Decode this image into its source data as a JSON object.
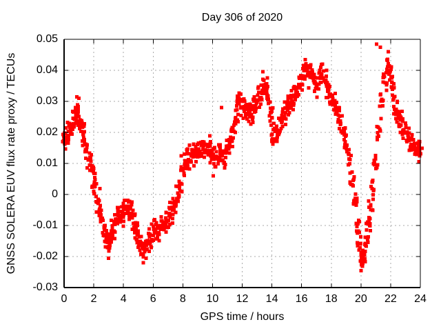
{
  "chart_data": {
    "type": "scatter",
    "title": "Day 306 of 2020",
    "xlabel": "GPS time / hours",
    "ylabel": "GNSS SOLERA EUV flux rate proxy / TECUs",
    "xlim": [
      0,
      24
    ],
    "ylim": [
      -0.03,
      0.05
    ],
    "xticks": [
      0,
      2,
      4,
      6,
      8,
      10,
      12,
      14,
      16,
      18,
      20,
      22,
      24
    ],
    "xtick_labels": [
      "0",
      "2",
      "4",
      "6",
      "8",
      "10",
      "12",
      "14",
      "16",
      "18",
      "20",
      "22",
      "24"
    ],
    "yticks": [
      -0.03,
      -0.02,
      -0.01,
      0,
      0.01,
      0.02,
      0.03,
      0.04,
      0.05
    ],
    "ytick_labels": [
      "-0.03",
      "-0.02",
      "-0.01",
      "0",
      "0.01",
      "0.02",
      "0.03",
      "0.04",
      "0.05"
    ],
    "grid": true,
    "grid_style": "dashed",
    "legend_position": "none",
    "marker": "filled-square",
    "marker_color": "#ff0000",
    "marker_size_px": 5,
    "scatter_band_halfwidth": 0.005,
    "points_per_sample": 10,
    "series": [
      {
        "name": "EUV flux rate proxy",
        "midline": [
          [
            0,
            0.018
          ],
          [
            0.15,
            0.019
          ],
          [
            0.3,
            0.02
          ],
          [
            0.5,
            0.022
          ],
          [
            0.7,
            0.025
          ],
          [
            0.85,
            0.026
          ],
          [
            1,
            0.024
          ],
          [
            1.15,
            0.022
          ],
          [
            1.3,
            0.019
          ],
          [
            1.5,
            0.015
          ],
          [
            1.7,
            0.011
          ],
          [
            1.85,
            0.009
          ],
          [
            2,
            0.006
          ],
          [
            2.15,
            0.002
          ],
          [
            2.3,
            -0.002
          ],
          [
            2.5,
            -0.008
          ],
          [
            2.7,
            -0.012
          ],
          [
            2.85,
            -0.014
          ],
          [
            3,
            -0.015
          ],
          [
            3.15,
            -0.015
          ],
          [
            3.3,
            -0.012
          ],
          [
            3.5,
            -0.009
          ],
          [
            3.7,
            -0.007
          ],
          [
            3.9,
            -0.006
          ],
          [
            4.1,
            -0.005
          ],
          [
            4.3,
            -0.004
          ],
          [
            4.5,
            -0.005
          ],
          [
            4.7,
            -0.008
          ],
          [
            4.85,
            -0.011
          ],
          [
            5,
            -0.014
          ],
          [
            5.15,
            -0.016
          ],
          [
            5.3,
            -0.018
          ],
          [
            5.45,
            -0.018
          ],
          [
            5.6,
            -0.016
          ],
          [
            5.8,
            -0.014
          ],
          [
            6,
            -0.013
          ],
          [
            6.2,
            -0.012
          ],
          [
            6.4,
            -0.011
          ],
          [
            6.6,
            -0.01
          ],
          [
            6.8,
            -0.009
          ],
          [
            7,
            -0.008
          ],
          [
            7.2,
            -0.006
          ],
          [
            7.4,
            -0.004
          ],
          [
            7.6,
            -0.001
          ],
          [
            7.8,
            0.003
          ],
          [
            8,
            0.008
          ],
          [
            8.2,
            0.01
          ],
          [
            8.4,
            0.012
          ],
          [
            8.6,
            0.013
          ],
          [
            8.8,
            0.013
          ],
          [
            9,
            0.014
          ],
          [
            9.2,
            0.015
          ],
          [
            9.4,
            0.015
          ],
          [
            9.6,
            0.015
          ],
          [
            9.8,
            0.014
          ],
          [
            10,
            0.013
          ],
          [
            10.2,
            0.012
          ],
          [
            10.4,
            0.013
          ],
          [
            10.6,
            0.013
          ],
          [
            10.8,
            0.013
          ],
          [
            11,
            0.015
          ],
          [
            11.2,
            0.017
          ],
          [
            11.4,
            0.021
          ],
          [
            11.6,
            0.026
          ],
          [
            11.8,
            0.029
          ],
          [
            12,
            0.029
          ],
          [
            12.2,
            0.027
          ],
          [
            12.4,
            0.026
          ],
          [
            12.6,
            0.026
          ],
          [
            12.8,
            0.028
          ],
          [
            13,
            0.03
          ],
          [
            13.2,
            0.032
          ],
          [
            13.4,
            0.034
          ],
          [
            13.6,
            0.034
          ],
          [
            13.8,
            0.032
          ],
          [
            13.95,
            0.026
          ],
          [
            14.1,
            0.019
          ],
          [
            14.25,
            0.02
          ],
          [
            14.4,
            0.021
          ],
          [
            14.6,
            0.022
          ],
          [
            14.8,
            0.025
          ],
          [
            15,
            0.028
          ],
          [
            15.2,
            0.029
          ],
          [
            15.4,
            0.03
          ],
          [
            15.6,
            0.032
          ],
          [
            15.8,
            0.034
          ],
          [
            16,
            0.037
          ],
          [
            16.2,
            0.039
          ],
          [
            16.4,
            0.04
          ],
          [
            16.6,
            0.038
          ],
          [
            16.8,
            0.036
          ],
          [
            17,
            0.035
          ],
          [
            17.2,
            0.037
          ],
          [
            17.4,
            0.038
          ],
          [
            17.6,
            0.036
          ],
          [
            17.8,
            0.033
          ],
          [
            18,
            0.031
          ],
          [
            18.2,
            0.029
          ],
          [
            18.4,
            0.027
          ],
          [
            18.6,
            0.024
          ],
          [
            18.8,
            0.021
          ],
          [
            19,
            0.017
          ],
          [
            19.2,
            0.012
          ],
          [
            19.4,
            0.005
          ],
          [
            19.6,
            -0.003
          ],
          [
            19.75,
            -0.01
          ],
          [
            19.9,
            -0.017
          ],
          [
            20.05,
            -0.021
          ],
          [
            20.2,
            -0.019
          ],
          [
            20.35,
            -0.015
          ],
          [
            20.5,
            -0.01
          ],
          [
            20.65,
            -0.005
          ],
          [
            20.8,
            0.002
          ],
          [
            21,
            0.011
          ],
          [
            21.2,
            0.021
          ],
          [
            21.4,
            0.03
          ],
          [
            21.6,
            0.036
          ],
          [
            21.8,
            0.042
          ],
          [
            21.95,
            0.04
          ],
          [
            22.1,
            0.035
          ],
          [
            22.3,
            0.029
          ],
          [
            22.5,
            0.025
          ],
          [
            22.7,
            0.023
          ],
          [
            22.9,
            0.021
          ],
          [
            23.1,
            0.019
          ],
          [
            23.3,
            0.017
          ],
          [
            23.5,
            0.016
          ],
          [
            23.7,
            0.015
          ],
          [
            23.85,
            0.014
          ],
          [
            24,
            0.014
          ]
        ],
        "extreme_points": [
          [
            0.85,
            0.0315
          ],
          [
            1,
            0.031
          ],
          [
            3,
            -0.0205
          ],
          [
            5.35,
            -0.022
          ],
          [
            10.05,
            0.006
          ],
          [
            10.6,
            0.028
          ],
          [
            13.4,
            0.0395
          ],
          [
            16.25,
            0.0435
          ],
          [
            17.3,
            0.041
          ],
          [
            20,
            -0.0245
          ],
          [
            21.05,
            0.0485
          ],
          [
            21.3,
            0.0475
          ],
          [
            21.85,
            0.046
          ]
        ]
      }
    ],
    "colors": {
      "background": "#ffffff",
      "axis": "#000000",
      "grid": "#aaaaaa",
      "text": "#000000",
      "data": "#ff0000"
    }
  }
}
